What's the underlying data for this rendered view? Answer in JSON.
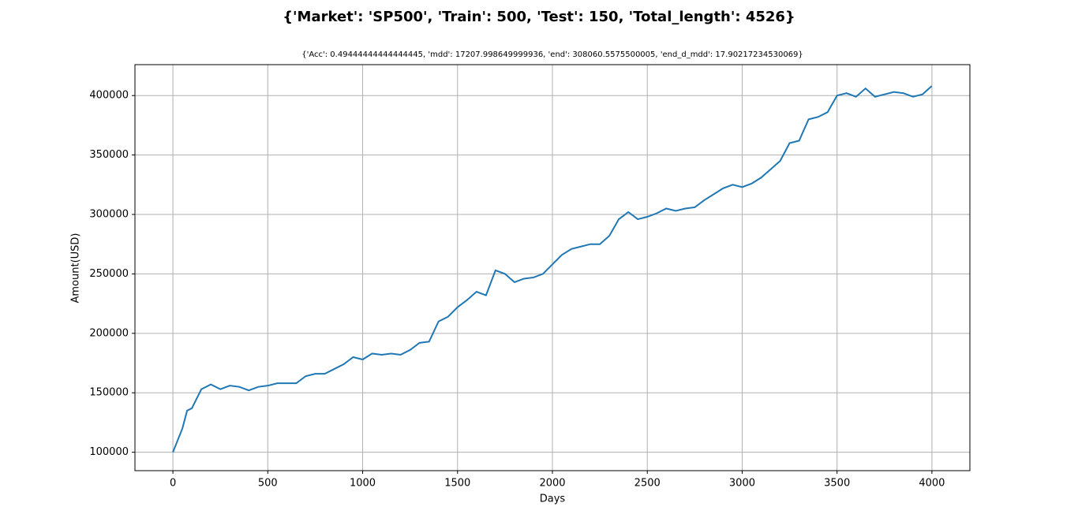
{
  "chart_data": {
    "type": "line",
    "title": "{'Market': 'SP500', 'Train': 500, 'Test': 150, 'Total_length': 4526}",
    "subtitle": "{'Acc': 0.49444444444444445, 'mdd': 17207.998649999936, 'end': 308060.5575500005, 'end_d_mdd': 17.90217234530069}",
    "x_label": "Days",
    "y_label": "Amount(USD)",
    "x": [
      0,
      50,
      75,
      100,
      150,
      200,
      250,
      300,
      350,
      400,
      450,
      500,
      550,
      600,
      650,
      700,
      750,
      800,
      850,
      900,
      950,
      1000,
      1050,
      1100,
      1150,
      1200,
      1250,
      1300,
      1350,
      1400,
      1450,
      1500,
      1550,
      1600,
      1650,
      1700,
      1750,
      1800,
      1850,
      1900,
      1950,
      2000,
      2050,
      2100,
      2150,
      2200,
      2250,
      2300,
      2350,
      2400,
      2450,
      2500,
      2550,
      2600,
      2650,
      2700,
      2750,
      2800,
      2850,
      2900,
      2950,
      3000,
      3050,
      3100,
      3150,
      3200,
      3250,
      3300,
      3350,
      3400,
      3450,
      3500,
      3550,
      3600,
      3650,
      3700,
      3750,
      3800,
      3850,
      3900,
      3950,
      3999
    ],
    "series": [
      {
        "color": "#1f77b4",
        "values": [
          100000,
          120000,
          135000,
          137000,
          153000,
          157000,
          153000,
          156000,
          155000,
          152000,
          155000,
          156000,
          158000,
          158000,
          158000,
          164000,
          166000,
          166000,
          170000,
          174000,
          180000,
          178000,
          183000,
          182000,
          183000,
          182000,
          186000,
          192000,
          193000,
          210000,
          214000,
          222000,
          228000,
          235000,
          232000,
          253000,
          250000,
          243000,
          246000,
          247000,
          250000,
          258000,
          266000,
          271000,
          273000,
          275000,
          275000,
          282000,
          296000,
          302000,
          296000,
          298000,
          301000,
          305000,
          303000,
          305000,
          306000,
          312000,
          317000,
          322000,
          325000,
          323000,
          326000,
          331000,
          338000,
          345000,
          360000,
          362000,
          380000,
          382000,
          386000,
          400000,
          402000,
          399000,
          406000,
          399000,
          401000,
          403000,
          402000,
          399000,
          401000,
          408000
        ]
      }
    ],
    "xlim": [
      -200,
      4200
    ],
    "xticks": [
      0,
      500,
      1000,
      1500,
      2000,
      2500,
      3000,
      3500,
      4000
    ],
    "ylim": [
      84500,
      426000
    ],
    "yticks": [
      100000,
      150000,
      200000,
      250000,
      300000,
      350000,
      400000
    ],
    "grid": true
  }
}
